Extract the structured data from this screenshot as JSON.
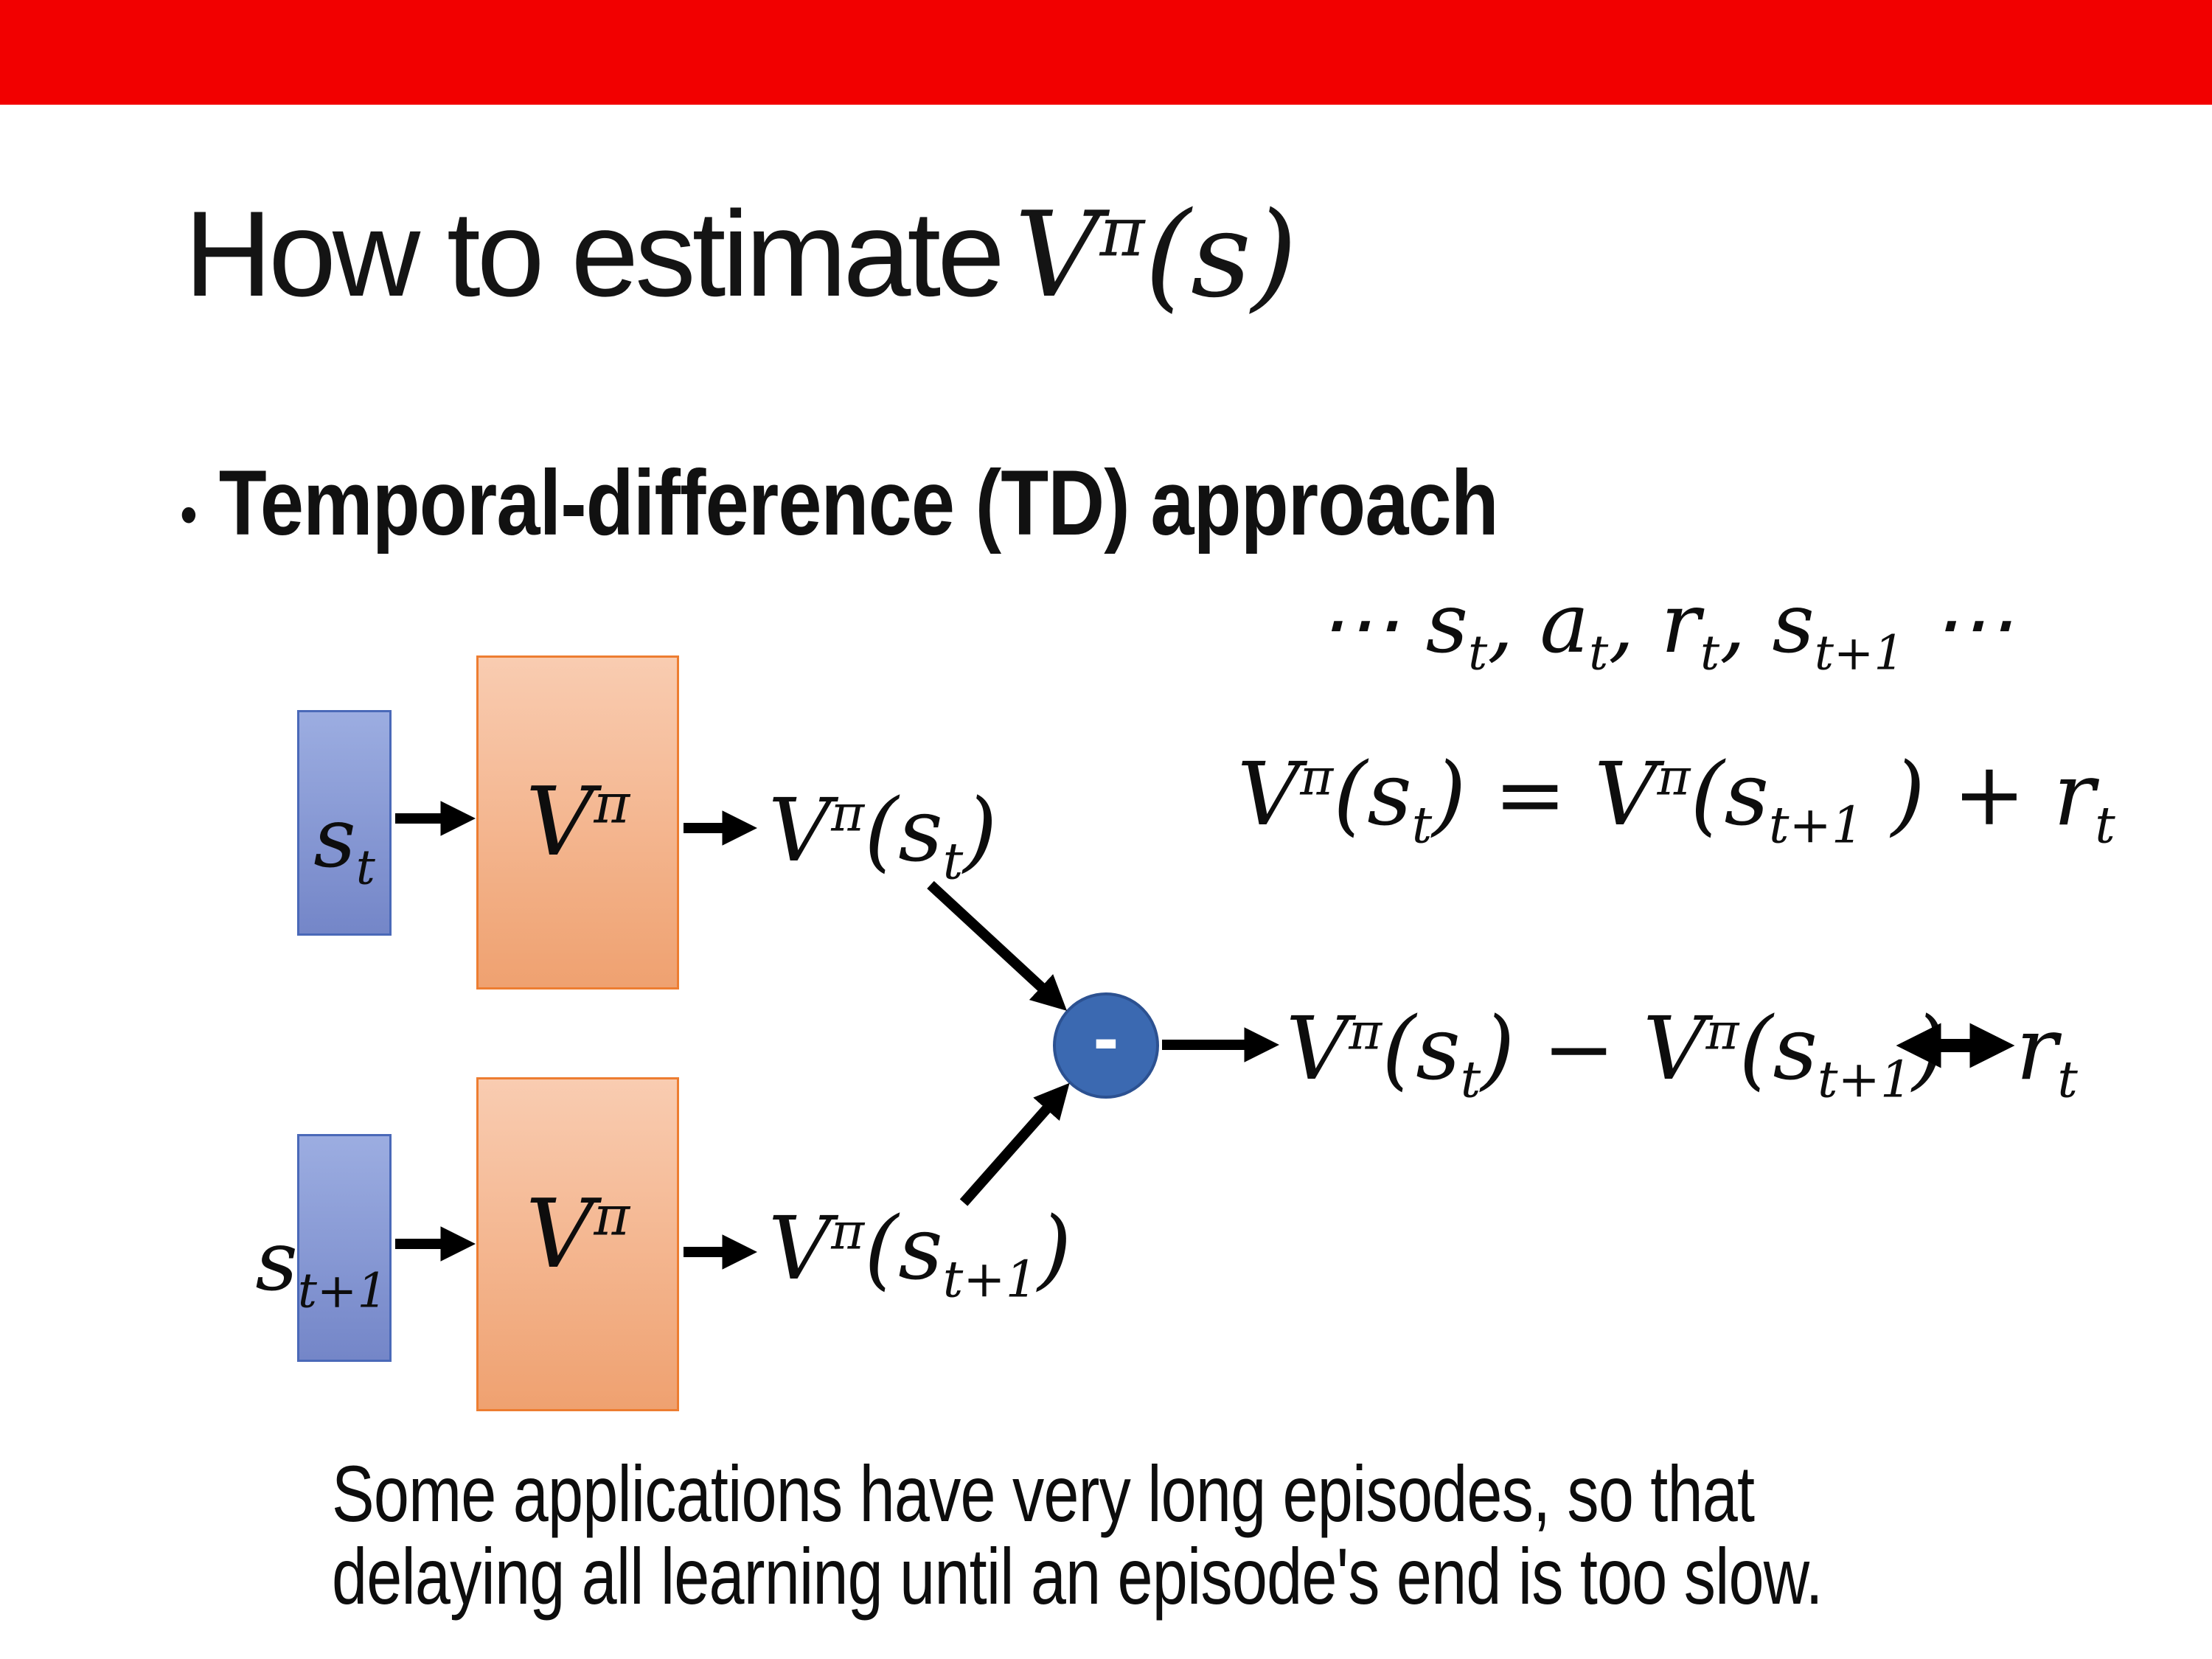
{
  "slide": {
    "recording_bar_color": "#f20000",
    "background": "#ffffff"
  },
  "title": {
    "text": "How to estimate",
    "math": [
      [
        "b",
        "V"
      ],
      [
        "sup",
        "π"
      ],
      [
        "b",
        "(s)"
      ]
    ]
  },
  "bullet": {
    "marker": "•",
    "text": "Temporal-difference (TD) approach"
  },
  "equations": {
    "trajectory": [
      [
        "b",
        "⋯ s"
      ],
      [
        "sub",
        "t"
      ],
      [
        "b",
        ", a"
      ],
      [
        "sub",
        "t"
      ],
      [
        "b",
        ", r"
      ],
      [
        "sub",
        "t"
      ],
      [
        "b",
        ", s"
      ],
      [
        "sub",
        "t+1"
      ],
      [
        "b",
        " ⋯"
      ]
    ],
    "td_update": [
      [
        "b",
        "V"
      ],
      [
        "sup",
        "π"
      ],
      [
        "b",
        "(s"
      ],
      [
        "sub",
        "t"
      ],
      [
        "b",
        ") = V"
      ],
      [
        "sup",
        "π"
      ],
      [
        "b",
        "(s"
      ],
      [
        "sub",
        "t+1"
      ],
      [
        "b",
        " ) + r"
      ],
      [
        "sub",
        "t"
      ]
    ],
    "difference": [
      [
        "b",
        "V"
      ],
      [
        "sup",
        "π"
      ],
      [
        "b",
        "(s"
      ],
      [
        "sub",
        "t"
      ],
      [
        "b",
        ") − V"
      ],
      [
        "sup",
        "π"
      ],
      [
        "b",
        "(s"
      ],
      [
        "sub",
        "t+1"
      ],
      [
        "b",
        ")"
      ]
    ],
    "reward": [
      [
        "b",
        "r"
      ],
      [
        "sub",
        "t"
      ]
    ]
  },
  "diagram": {
    "state_box_1_label": [
      [
        "b",
        "s"
      ],
      [
        "sub",
        "t"
      ]
    ],
    "state_box_2_label": [
      [
        "b",
        "s"
      ],
      [
        "sub",
        "t+1"
      ]
    ],
    "value_box_1_label": [
      [
        "b",
        "V"
      ],
      [
        "sup",
        "π"
      ]
    ],
    "value_box_2_label": [
      [
        "b",
        "V"
      ],
      [
        "sup",
        "π"
      ]
    ],
    "value_output_1": [
      [
        "b",
        "V"
      ],
      [
        "sup",
        "π"
      ],
      [
        "b",
        "(s"
      ],
      [
        "sub",
        "t"
      ],
      [
        "b",
        ")"
      ]
    ],
    "value_output_2": [
      [
        "b",
        "V"
      ],
      [
        "sup",
        "π"
      ],
      [
        "b",
        "(s"
      ],
      [
        "sub",
        "t+1"
      ],
      [
        "b",
        ")"
      ]
    ],
    "minus_node_label": "-",
    "colors": {
      "recording_bar": "#f20000",
      "state_fill_top": "#9cade1",
      "state_fill_bottom": "#7486c8",
      "state_border": "#4a69b8",
      "value_fill_top": "#f9ccb1",
      "value_fill_bottom": "#efa170",
      "value_border": "#ed7d31",
      "node_fill": "#3b69b1",
      "node_border": "#2c5191",
      "arrow": "#000000"
    }
  },
  "footer": {
    "line1": "Some applications have very long episodes, so that",
    "line2": "delaying all learning until an episode's end is too slow."
  }
}
